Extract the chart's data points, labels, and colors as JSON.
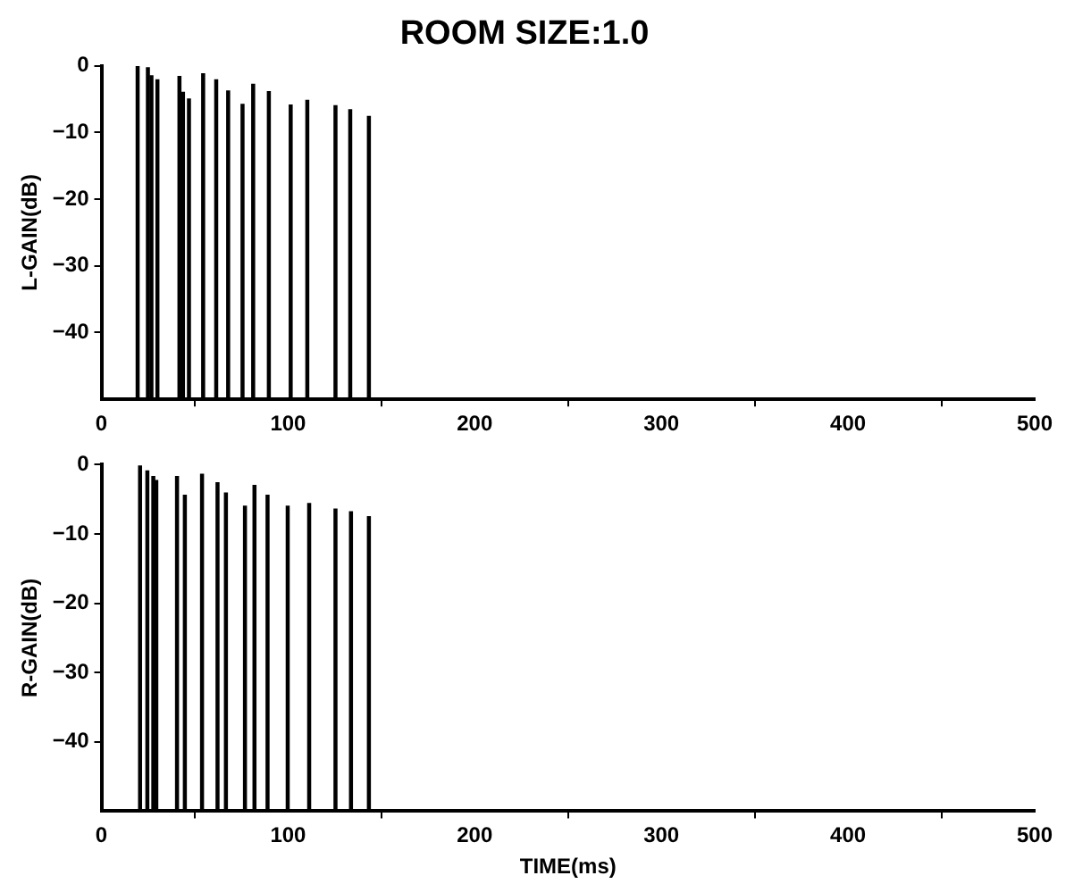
{
  "chart_data": [
    {
      "type": "bar",
      "title": "ROOM SIZE:1.0",
      "ylabel": "L-GAIN(dB)",
      "x": [
        19.4,
        24.9,
        26.8,
        30,
        41.8,
        43.7,
        46.9,
        54.5,
        61.5,
        67.9,
        75.6,
        81.3,
        89.7,
        101.4,
        110.3,
        125.4,
        133.3,
        143.3
      ],
      "base": [
        -50,
        -50,
        -50,
        -50,
        -50,
        -50,
        -50,
        -50,
        -50,
        -50,
        -50,
        -50,
        -50,
        -50,
        -50,
        -50,
        -50,
        -50
      ],
      "values": [
        50,
        49.7,
        48.5,
        47.9,
        48.4,
        46,
        45,
        48.8,
        47.9,
        46.2,
        44.2,
        47.2,
        46.1,
        44.1,
        44.8,
        44,
        43.4,
        42.4
      ],
      "color": "#000000",
      "xlim": [
        0,
        500
      ],
      "xticks": [
        0,
        100,
        200,
        300,
        400,
        500
      ],
      "ylim": [
        -50,
        0
      ],
      "yticks": [
        0,
        -10,
        -20,
        -30,
        -40
      ],
      "grid": false,
      "legend": false
    },
    {
      "type": "bar",
      "ylabel": "R-GAIN(dB)",
      "xlabel": "TIME(ms)",
      "x": [
        20.7,
        24.6,
        27.8,
        29.4,
        40.5,
        44.7,
        53.9,
        62.2,
        66.7,
        76.9,
        82,
        89,
        99.8,
        111.3,
        125.4,
        133.7,
        143.3
      ],
      "base": [
        -50,
        -50,
        -50,
        -50,
        -50,
        -50,
        -50,
        -50,
        -50,
        -50,
        -50,
        -50,
        -50,
        -50,
        -50,
        -50,
        -50
      ],
      "values": [
        49.8,
        49.1,
        48.3,
        47.7,
        48.3,
        45.6,
        48.6,
        47.4,
        45.9,
        44,
        47,
        45.6,
        44,
        44.4,
        43.6,
        43.2,
        42.5
      ],
      "color": "#000000",
      "xlim": [
        0,
        500
      ],
      "xticks": [
        0,
        100,
        200,
        300,
        400,
        500
      ],
      "ylim": [
        -50,
        0
      ],
      "yticks": [
        0,
        -10,
        -20,
        -30,
        -40
      ],
      "grid": false,
      "legend": false
    }
  ]
}
